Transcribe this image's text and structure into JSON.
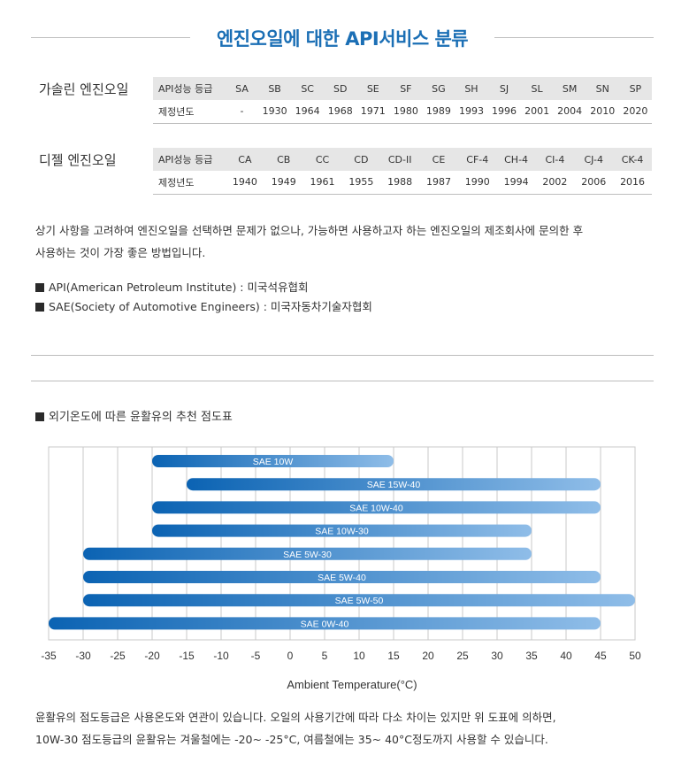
{
  "title": "엔진오일에 대한 API서비스 분류",
  "gasoline": {
    "label": "가솔린 엔진오일",
    "header_label": "API성능 등급",
    "year_label": "제정년도",
    "grades": [
      "SA",
      "SB",
      "SC",
      "SD",
      "SE",
      "SF",
      "SG",
      "SH",
      "SJ",
      "SL",
      "SM",
      "SN",
      "SP"
    ],
    "years": [
      "-",
      "1930",
      "1964",
      "1968",
      "1971",
      "1980",
      "1989",
      "1993",
      "1996",
      "2001",
      "2004",
      "2010",
      "2020"
    ]
  },
  "diesel": {
    "label": "디젤 엔진오일",
    "header_label": "API성능 등급",
    "year_label": "제정년도",
    "grades": [
      "CA",
      "CB",
      "CC",
      "CD",
      "CD-II",
      "CE",
      "CF-4",
      "CH-4",
      "CI-4",
      "CJ-4",
      "CK-4"
    ],
    "years": [
      "1940",
      "1949",
      "1961",
      "1955",
      "1988",
      "1987",
      "1990",
      "1994",
      "2002",
      "2006",
      "2016"
    ]
  },
  "note": {
    "line1": "상기 사항을 고려하여 엔진오일을 선택하면 문제가 없으나, 가능하면 사용하고자 하는 엔진오일의 제조회사에 문의한 후",
    "line2": "사용하는 것이 가장 좋은 방법입니다."
  },
  "definitions": {
    "api": "API(American Petroleum Institute) : 미국석유협회",
    "sae": "SAE(Society of Automotive Engineers) : 미국자동차기술자협회"
  },
  "chart_heading": "외기온도에 따른 윤활유의 추천 점도표",
  "colors": {
    "accent": "#1b6fb5",
    "bar_dark": "#0b63b3",
    "bar_light": "#8fbde8"
  },
  "chart_data": {
    "type": "bar",
    "orientation": "horizontal-range",
    "xlabel": "Ambient Temperature(°C)",
    "xlim": [
      -35,
      50
    ],
    "xticks": [
      -35,
      -30,
      -25,
      -20,
      -15,
      -10,
      -5,
      0,
      5,
      10,
      15,
      20,
      25,
      30,
      35,
      40,
      45,
      50
    ],
    "grid": true,
    "series": [
      {
        "name": "SAE 10W",
        "min": -20,
        "max": 15
      },
      {
        "name": "SAE 15W-40",
        "min": -15,
        "max": 45
      },
      {
        "name": "SAE 10W-40",
        "min": -20,
        "max": 45
      },
      {
        "name": "SAE 10W-30",
        "min": -20,
        "max": 35
      },
      {
        "name": "SAE 5W-30",
        "min": -30,
        "max": 35
      },
      {
        "name": "SAE 5W-40",
        "min": -30,
        "max": 45
      },
      {
        "name": "SAE 5W-50",
        "min": -30,
        "max": 50
      },
      {
        "name": "SAE 0W-40",
        "min": -35,
        "max": 45
      }
    ]
  },
  "footer": {
    "line1": "윤활유의 점도등급은 사용온도와 연관이 있습니다. 오일의 사용기간에 따라 다소 차이는 있지만 위 도표에 의하면,",
    "line2": "10W-30 점도등급의 윤활유는 겨울철에는 -20~ -25°C, 여름철에는 35~ 40°C정도까지 사용할 수 있습니다."
  }
}
